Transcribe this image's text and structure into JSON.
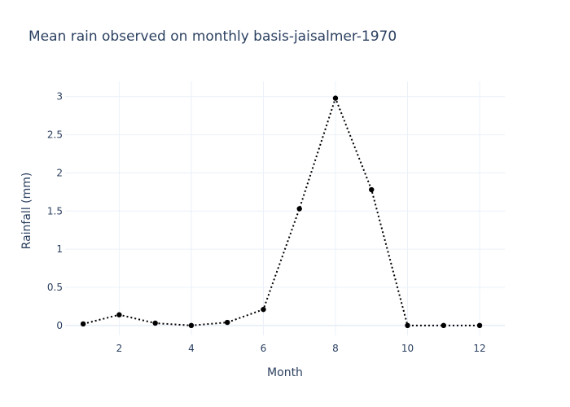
{
  "chart_data": {
    "type": "line",
    "title": "Mean rain observed on monthly basis-jaisalmer-1970",
    "xlabel": "Month",
    "ylabel": "Rainfall (mm)",
    "xlim": [
      0.5,
      12.7
    ],
    "ylim": [
      -0.13,
      3.2
    ],
    "xticks": [
      2,
      4,
      6,
      8,
      10,
      12
    ],
    "yticks": [
      0,
      0.5,
      1,
      1.5,
      2,
      2.5,
      3
    ],
    "ytick_labels": [
      "0",
      "0.5",
      "1",
      "1.5",
      "2",
      "2.5",
      "3"
    ],
    "grid": true,
    "line_style": "dotted",
    "marker": "circle",
    "color": "#000000",
    "x": [
      1,
      2,
      3,
      4,
      5,
      6,
      7,
      8,
      9,
      10,
      11,
      12
    ],
    "y": [
      0.02,
      0.14,
      0.03,
      0.0,
      0.04,
      0.21,
      1.53,
      2.98,
      1.78,
      0.0,
      0.0,
      0.0
    ]
  }
}
